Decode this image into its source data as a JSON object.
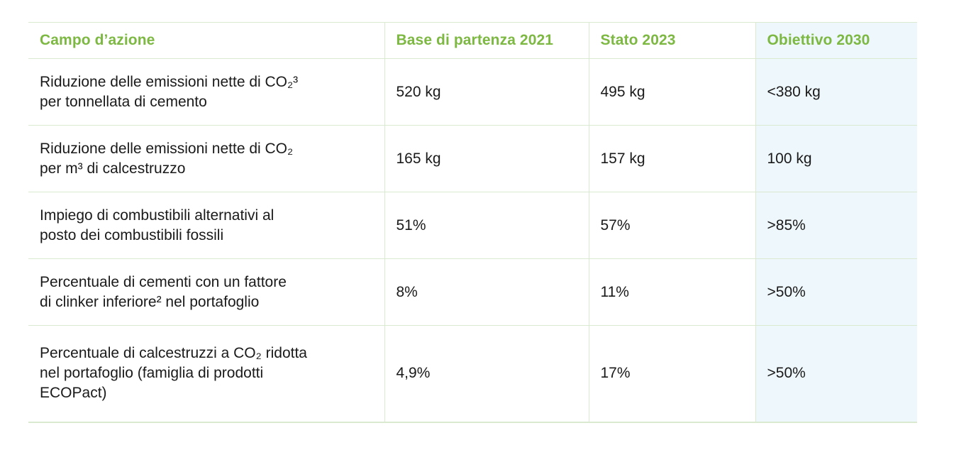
{
  "table": {
    "headers": [
      "Campo d’azione",
      "Base di partenza 2021",
      "Stato 2023",
      "Obiettivo 2030"
    ],
    "rows": [
      {
        "label_line1": "Riduzione delle emissioni nette di CO₂³",
        "label_line2": "per tonnellata di cemento",
        "label_line3": "",
        "base_2021": "520 kg",
        "stato_2023": "495 kg",
        "obiettivo_2030": "<380 kg"
      },
      {
        "label_line1": "Riduzione delle emissioni nette di CO₂",
        "label_line2": "per m³ di calcestruzzo",
        "label_line3": "",
        "base_2021": "165 kg",
        "stato_2023": "157 kg",
        "obiettivo_2030": "100 kg"
      },
      {
        "label_line1": "Impiego di combustibili alternativi al",
        "label_line2": "posto dei combustibili fossili",
        "label_line3": "",
        "base_2021": "51%",
        "stato_2023": "57%",
        "obiettivo_2030": ">85%"
      },
      {
        "label_line1": "Percentuale di cementi con un fattore",
        "label_line2": "di clinker inferiore² nel portafoglio",
        "label_line3": "",
        "base_2021": "8%",
        "stato_2023": "11%",
        "obiettivo_2030": ">50%"
      },
      {
        "label_line1": "Percentuale di calcestruzzi a CO₂ ridotta",
        "label_line2": "nel portafoglio (famiglia di prodotti",
        "label_line3": "ECOPact)",
        "base_2021": "4,9%",
        "stato_2023": "17%",
        "obiettivo_2030": ">50%"
      }
    ]
  },
  "colors": {
    "header_text": "#7cb842",
    "grid_line": "#d9ead0",
    "target_column_bg": "#eef7fb"
  }
}
